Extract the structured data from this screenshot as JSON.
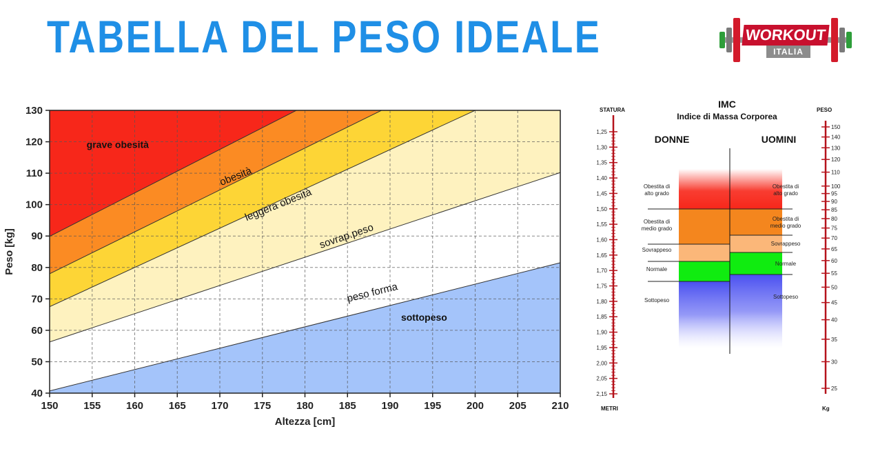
{
  "title": "TABELLA DEL PESO IDEALE",
  "logo": {
    "word": "WORKOUT",
    "sub": "ITALIA"
  },
  "chart_data": [
    {
      "type": "area",
      "xlabel": "Altezza [cm]",
      "ylabel": "Peso [kg]",
      "xlim": [
        150,
        210
      ],
      "ylim": [
        40,
        130
      ],
      "x_ticks": [
        150,
        155,
        160,
        165,
        170,
        175,
        180,
        185,
        190,
        195,
        200,
        205,
        210
      ],
      "y_ticks": [
        40,
        50,
        60,
        70,
        80,
        90,
        100,
        110,
        120,
        130
      ],
      "grid": true,
      "boundaries": [
        {
          "name": "",
          "points": [
            [
              150,
              40.7
            ],
            [
              210,
              81.5
            ]
          ]
        },
        {
          "name": "",
          "points": [
            [
              150,
              56.3
            ],
            [
              210,
              110.2
            ]
          ]
        },
        {
          "name": "",
          "points": [
            [
              150,
              67.5
            ],
            [
              200,
              130
            ]
          ]
        },
        {
          "name": "",
          "points": [
            [
              150,
              78.0
            ],
            [
              189,
              130
            ]
          ]
        },
        {
          "name": "",
          "points": [
            [
              150,
              89.9
            ],
            [
              179,
              130
            ]
          ]
        }
      ],
      "regions": [
        {
          "label": "sottopeso",
          "color": "#a4c4fa",
          "label_pos": [
            194,
            63
          ],
          "rotation": 0
        },
        {
          "label": "peso forma",
          "color": "#ffffff",
          "label_pos": [
            188,
            71
          ],
          "rotation": -14
        },
        {
          "label": "sovrap.peso",
          "color": "#fef2bf",
          "label_pos": [
            185,
            89
          ],
          "rotation": -19
        },
        {
          "label": "leggera obesità",
          "color": "#fdd536",
          "label_pos": [
            177,
            99
          ],
          "rotation": -22
        },
        {
          "label": "obesità",
          "color": "#fb8b23",
          "label_pos": [
            172,
            108
          ],
          "rotation": -22
        },
        {
          "label": "grave obesità",
          "color": "#f7271a",
          "label_pos": [
            158,
            118
          ],
          "rotation": 0
        }
      ]
    },
    {
      "type": "table",
      "title": "IMC",
      "subtitle": "Indice di Massa Corporea",
      "left_scale": {
        "top_label": "STATURA",
        "bottom_label": "METRI",
        "ticks": [
          "1,25",
          "1,30",
          "1,35",
          "1,40",
          "1,45",
          "1,50",
          "1,55",
          "1,60",
          "1,65",
          "1,70",
          "1,75",
          "1,80",
          "1,85",
          "1,90",
          "1,95",
          "2,00",
          "2,05",
          "2,15"
        ]
      },
      "right_scale": {
        "top_label": "PESO",
        "bottom_label": "Kg",
        "ticks": [
          "150",
          "140",
          "130",
          "120",
          "110",
          "100",
          "95",
          "90",
          "85",
          "80",
          "75",
          "70",
          "65",
          "60",
          "55",
          "50",
          "45",
          "40",
          "35",
          "30",
          "25"
        ]
      },
      "columns": [
        {
          "header": "DONNE",
          "bands": [
            {
              "label": "Obestita di alto grado",
              "color": "#f7271a"
            },
            {
              "label": "Obestita di medio grado",
              "color": "#f4861e"
            },
            {
              "label": "Sovrappeso",
              "color": "#fbb779"
            },
            {
              "label": "Normale",
              "color": "#10ec10"
            },
            {
              "label": "Sottopeso",
              "color": "#4a50f0"
            }
          ]
        },
        {
          "header": "UOMINI",
          "bands": [
            {
              "label": "Obestita di alto grado",
              "color": "#f7271a"
            },
            {
              "label": "Obestita di medio grado",
              "color": "#f4861e"
            },
            {
              "label": "Sovrappeso",
              "color": "#fbb779"
            },
            {
              "label": "Normale",
              "color": "#10ec10"
            },
            {
              "label": "Sottopeso",
              "color": "#4a50f0"
            }
          ]
        }
      ]
    }
  ]
}
